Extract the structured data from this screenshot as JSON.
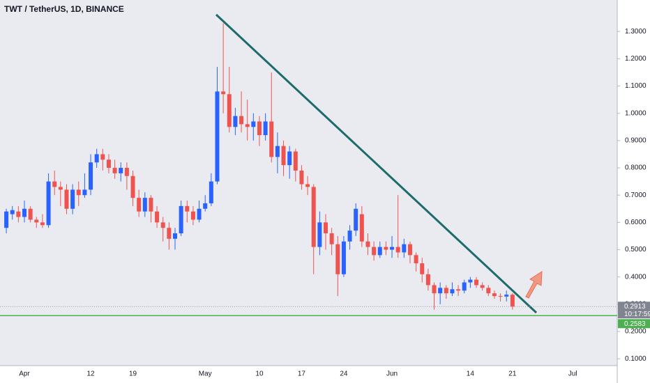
{
  "chart_data": {
    "type": "candlestick",
    "title": "TWT / TetherUS, 1D, BINANCE",
    "up_color": "#2962ff",
    "down_color": "#ef5350",
    "grid": false,
    "ylim": [
      0.0214,
      1.3592
    ],
    "yticks": [
      {
        "value": 0.1,
        "label": "0.1000"
      },
      {
        "value": 0.2,
        "label": "0.2000"
      },
      {
        "value": 0.3,
        "label": "0.3000"
      },
      {
        "value": 0.4,
        "label": "0.4000"
      },
      {
        "value": 0.5,
        "label": "0.5000"
      },
      {
        "value": 0.6,
        "label": "0.6000"
      },
      {
        "value": 0.7,
        "label": "0.7000"
      },
      {
        "value": 0.8,
        "label": "0.8000"
      },
      {
        "value": 0.9,
        "label": "0.9000"
      },
      {
        "value": 1.0,
        "label": "1.0000"
      },
      {
        "value": 1.1,
        "label": "1.1000"
      },
      {
        "value": 1.2,
        "label": "1.2000"
      },
      {
        "value": 1.3,
        "label": "1.3000"
      }
    ],
    "categories": [
      null,
      null,
      null,
      "Apr",
      null,
      null,
      null,
      null,
      null,
      null,
      null,
      null,
      null,
      null,
      "12",
      null,
      null,
      null,
      null,
      null,
      null,
      "19",
      null,
      null,
      null,
      null,
      null,
      null,
      null,
      null,
      null,
      null,
      null,
      "May",
      null,
      null,
      null,
      null,
      null,
      null,
      null,
      null,
      "10",
      null,
      null,
      null,
      null,
      null,
      null,
      "17",
      null,
      null,
      null,
      null,
      null,
      null,
      "24",
      null,
      null,
      null,
      null,
      null,
      null,
      null,
      "Jun",
      null,
      null,
      null,
      null,
      null,
      null,
      null,
      null,
      null,
      null,
      null,
      null,
      "14",
      null,
      null,
      null,
      null,
      null,
      null,
      "21",
      null,
      null,
      null,
      null,
      null,
      null,
      null,
      null,
      null,
      "Jul",
      null,
      null,
      null,
      null,
      null,
      null,
      null
    ],
    "open": [
      0.58,
      0.63,
      0.64,
      0.62,
      0.65,
      0.61,
      0.6,
      0.59,
      0.75,
      0.73,
      0.72,
      0.65,
      0.72,
      0.7,
      0.72,
      0.82,
      0.85,
      0.83,
      0.8,
      0.78,
      0.8,
      0.77,
      0.69,
      0.64,
      0.69,
      0.64,
      0.6,
      0.58,
      0.54,
      0.56,
      0.66,
      0.64,
      0.61,
      0.65,
      0.67,
      0.75,
      1.08,
      1.07,
      0.95,
      0.99,
      0.96,
      0.95,
      0.97,
      0.92,
      0.97,
      0.84,
      0.88,
      0.81,
      0.86,
      0.79,
      0.74,
      0.73,
      0.51,
      0.6,
      0.56,
      0.52,
      0.41,
      0.53,
      0.57,
      0.63,
      0.53,
      0.51,
      0.48,
      0.51,
      0.5,
      0.51,
      0.49,
      0.52,
      0.48,
      0.45,
      0.41,
      0.37,
      0.34,
      0.36,
      0.34,
      0.355,
      0.35,
      0.38,
      0.39,
      0.37,
      0.36,
      0.34,
      0.33,
      0.328,
      0.335,
      null,
      null,
      null,
      null,
      null,
      null,
      null,
      null,
      null,
      null,
      null,
      null,
      null,
      null,
      null,
      null,
      null
    ],
    "high": [
      0.65,
      0.66,
      0.66,
      0.68,
      0.66,
      0.62,
      0.63,
      0.78,
      0.79,
      0.75,
      0.74,
      0.74,
      0.75,
      0.78,
      0.85,
      0.87,
      0.87,
      0.85,
      0.83,
      0.82,
      0.82,
      0.79,
      0.72,
      0.71,
      0.7,
      0.66,
      0.62,
      0.6,
      0.58,
      0.68,
      0.68,
      0.66,
      0.68,
      0.7,
      0.78,
      1.17,
      1.33,
      1.17,
      1.02,
      1.08,
      1.05,
      1.0,
      0.99,
      1.0,
      1.15,
      0.93,
      0.9,
      0.88,
      0.87,
      0.81,
      0.77,
      0.74,
      0.64,
      0.63,
      0.58,
      0.55,
      0.55,
      0.59,
      0.67,
      0.66,
      0.56,
      0.53,
      0.53,
      0.53,
      0.55,
      0.7,
      0.54,
      0.53,
      0.49,
      0.47,
      0.43,
      0.38,
      0.38,
      0.37,
      0.38,
      0.37,
      0.39,
      0.4,
      0.4,
      0.38,
      0.37,
      0.35,
      0.34,
      0.35,
      0.34,
      null,
      null,
      null,
      null,
      null,
      null,
      null,
      null,
      null,
      null,
      null,
      null,
      null,
      null,
      null,
      null,
      null
    ],
    "low": [
      0.56,
      0.61,
      0.6,
      0.6,
      0.6,
      0.58,
      0.58,
      0.58,
      0.7,
      0.66,
      0.63,
      0.63,
      0.66,
      0.69,
      0.7,
      0.8,
      0.79,
      0.78,
      0.76,
      0.75,
      0.72,
      0.66,
      0.62,
      0.62,
      0.6,
      0.58,
      0.53,
      0.5,
      0.5,
      0.55,
      0.6,
      0.59,
      0.6,
      0.64,
      0.66,
      0.74,
      1.0,
      0.93,
      0.92,
      0.93,
      0.9,
      0.9,
      0.88,
      0.9,
      0.82,
      0.78,
      0.77,
      0.76,
      0.75,
      0.72,
      0.7,
      0.41,
      0.48,
      0.5,
      0.48,
      0.33,
      0.4,
      0.5,
      0.55,
      0.51,
      0.48,
      0.46,
      0.47,
      0.48,
      0.47,
      0.47,
      0.47,
      0.45,
      0.42,
      0.38,
      0.35,
      0.28,
      0.3,
      0.32,
      0.33,
      0.33,
      0.34,
      0.36,
      0.36,
      0.35,
      0.33,
      0.32,
      0.31,
      0.31,
      0.28,
      null,
      null,
      null,
      null,
      null,
      null,
      null,
      null,
      null,
      null,
      null,
      null,
      null,
      null,
      null,
      null,
      null
    ],
    "close": [
      0.64,
      0.645,
      0.62,
      0.65,
      0.61,
      0.6,
      0.59,
      0.75,
      0.73,
      0.72,
      0.65,
      0.72,
      0.7,
      0.72,
      0.82,
      0.85,
      0.83,
      0.8,
      0.78,
      0.8,
      0.77,
      0.69,
      0.64,
      0.69,
      0.64,
      0.6,
      0.58,
      0.54,
      0.56,
      0.66,
      0.64,
      0.61,
      0.65,
      0.67,
      0.75,
      1.08,
      1.07,
      0.95,
      0.99,
      0.96,
      0.95,
      0.97,
      0.92,
      0.97,
      0.84,
      0.88,
      0.81,
      0.86,
      0.79,
      0.74,
      0.73,
      0.51,
      0.6,
      0.56,
      0.52,
      0.41,
      0.53,
      0.57,
      0.65,
      0.53,
      0.51,
      0.48,
      0.51,
      0.5,
      0.51,
      0.49,
      0.52,
      0.48,
      0.45,
      0.41,
      0.37,
      0.34,
      0.36,
      0.34,
      0.355,
      0.35,
      0.38,
      0.39,
      0.37,
      0.36,
      0.34,
      0.33,
      0.328,
      0.335,
      0.2913,
      null,
      null,
      null,
      null,
      null,
      null,
      null,
      null,
      null,
      null,
      null,
      null,
      null,
      null,
      null,
      null,
      null
    ],
    "last_price": {
      "value": 0.2913,
      "label": "0.2913"
    },
    "countdown": "10:17:59",
    "support_level": {
      "value": 0.2583,
      "label": "0.2583",
      "color": "#4caf50"
    }
  }
}
